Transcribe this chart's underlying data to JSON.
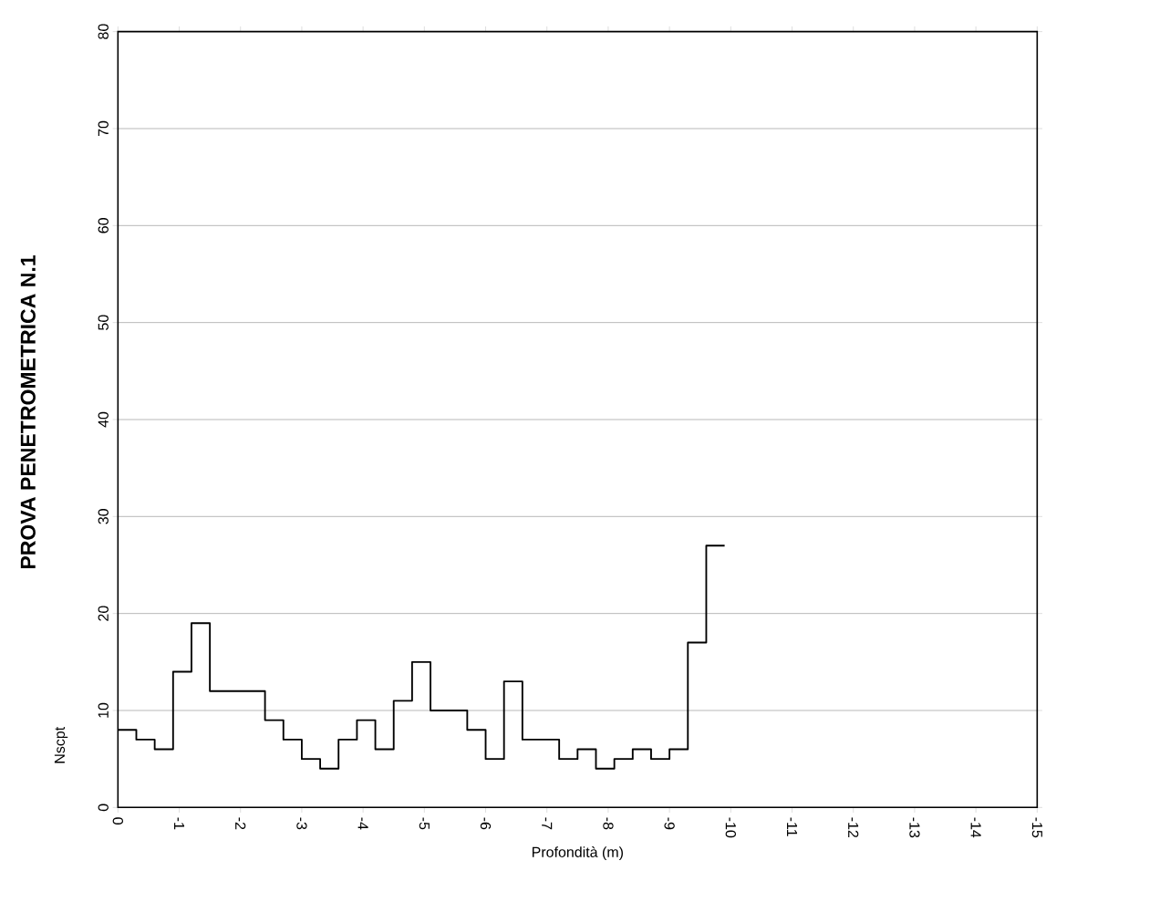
{
  "chart_data": {
    "type": "step",
    "title": "PROVA PENETROMETRICA N.1",
    "xlabel": "Profondità (m)",
    "ylabel": "Nscpt",
    "x": [
      0,
      -0.3,
      -0.6,
      -0.9,
      -1.2,
      -1.5,
      -1.8,
      -2.1,
      -2.4,
      -2.7,
      -3.0,
      -3.3,
      -3.6,
      -3.9,
      -4.2,
      -4.5,
      -4.8,
      -5.1,
      -5.4,
      -5.7,
      -6.0,
      -6.3,
      -6.6,
      -6.9,
      -7.2,
      -7.5,
      -7.8,
      -8.1,
      -8.4,
      -8.7,
      -9.0,
      -9.3,
      -9.6,
      -9.9
    ],
    "values": [
      8,
      7,
      6,
      14,
      19,
      12,
      12,
      12,
      9,
      7,
      5,
      4,
      7,
      9,
      6,
      11,
      15,
      10,
      10,
      8,
      5,
      13,
      7,
      7,
      5,
      6,
      4,
      5,
      6,
      5,
      6,
      17,
      27,
      27
    ],
    "color": "#000000",
    "xlim": [
      0,
      -15
    ],
    "xticks": [
      0,
      -1,
      -2,
      -3,
      -4,
      -5,
      -6,
      -7,
      -8,
      -9,
      -10,
      -11,
      -12,
      -13,
      -14,
      -15
    ],
    "ylim": [
      0,
      80
    ],
    "yticks": [
      0,
      10,
      20,
      30,
      40,
      50,
      60,
      70,
      80
    ],
    "grid": "y"
  }
}
